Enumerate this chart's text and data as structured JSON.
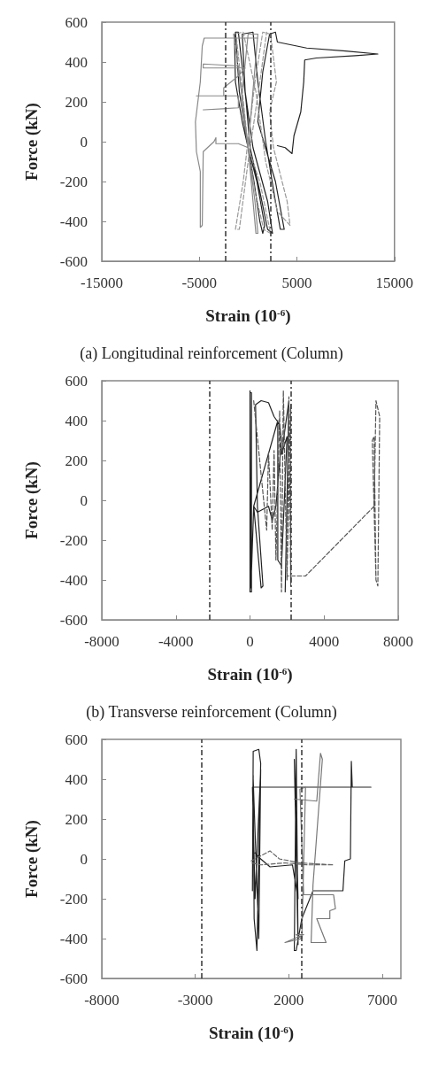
{
  "chart_data": [
    {
      "type": "line",
      "title": "(a) Longitudinal reinforcement (Column)",
      "xlabel": "Strain (10$^{-6}$)",
      "ylabel": "Force (kN)",
      "xlim": [
        -15000,
        15000
      ],
      "xticks": [
        -15000,
        -5000,
        5000,
        15000
      ],
      "ylim": [
        -600,
        600
      ],
      "yticks": [
        -600,
        -400,
        -200,
        0,
        200,
        400,
        600
      ],
      "marker": "none",
      "grid": false,
      "ref_lines": [
        {
          "axis": "x",
          "value": -2300,
          "color": "#333333",
          "line_style": "dashed"
        },
        {
          "axis": "x",
          "value": 2300,
          "color": "#333333",
          "line_style": "dashed"
        }
      ],
      "series": [
        {
          "color": "#222222",
          "line_style": "solid",
          "x": [
            -1400,
            -1300,
            -600,
            0,
            600,
            1200,
            1500,
            1700,
            900,
            0,
            -900,
            -1300,
            -1000,
            -200,
            200,
            1200,
            2000,
            2500,
            2000,
            500,
            -300,
            -600,
            500,
            1000,
            1800,
            2800,
            3300,
            3700,
            2800,
            1000,
            1500,
            2200,
            2800,
            3000,
            6000,
            10000,
            13300,
            11000,
            7000,
            5800,
            5700,
            5400,
            4700,
            4500,
            3800,
            3000
          ],
          "values": [
            540,
            300,
            100,
            -30,
            -200,
            -400,
            -460,
            -420,
            -200,
            -30,
            250,
            550,
            550,
            200,
            -30,
            -250,
            -440,
            -460,
            -300,
            -30,
            250,
            540,
            550,
            300,
            0,
            -300,
            -440,
            -440,
            -200,
            100,
            350,
            540,
            550,
            500,
            470,
            455,
            440,
            432,
            420,
            410,
            300,
            150,
            30,
            -60,
            -30,
            -20
          ]
        },
        {
          "color": "#999999",
          "line_style": "dashed",
          "x": [
            -1200,
            -700,
            0,
            700,
            1600,
            2300,
            1200,
            0,
            -800,
            -1500,
            -500,
            800,
            1800,
            3000,
            4300,
            4000,
            2600,
            2200,
            2900,
            2300,
            1500,
            700,
            -500,
            -1300,
            -900,
            0,
            1200,
            1900
          ],
          "values": [
            520,
            300,
            -30,
            -250,
            -440,
            -460,
            -200,
            -30,
            300,
            540,
            550,
            250,
            -100,
            -350,
            -420,
            -300,
            -30,
            150,
            300,
            540,
            550,
            300,
            -200,
            -440,
            -440,
            -100,
            300,
            550
          ]
        },
        {
          "color": "#888888",
          "line_style": "solid",
          "x": [
            1000,
            -4500,
            -4700,
            -4900,
            -5400,
            -5300,
            -4900,
            -4900,
            -4700,
            -4600,
            -3500,
            -3300,
            -3300,
            -1000,
            0,
            400,
            1000,
            0,
            -700,
            0,
            700,
            1000,
            800,
            0,
            -1000,
            -4600,
            -4600,
            -300,
            -1000,
            -2500,
            -2500,
            -5300,
            -1000,
            -1000,
            -4500,
            -4600
          ],
          "values": [
            520,
            520,
            480,
            300,
            100,
            -50,
            -150,
            -430,
            -420,
            -50,
            0,
            20,
            -10,
            -10,
            -30,
            200,
            540,
            540,
            200,
            -30,
            -300,
            -460,
            -460,
            -30,
            380,
            390,
            370,
            370,
            330,
            270,
            230,
            230,
            230,
            170,
            160,
            160
          ]
        }
      ]
    },
    {
      "type": "line",
      "title": "(b) Transverse reinforcement (Column)",
      "xlabel": "Strain (10$^{-6}$)",
      "ylabel": "Force (kN)",
      "xlim": [
        -8000,
        8000
      ],
      "xticks": [
        -8000,
        -4000,
        0,
        4000,
        8000
      ],
      "ylim": [
        -600,
        600
      ],
      "yticks": [
        -600,
        -400,
        -200,
        0,
        200,
        400,
        600
      ],
      "marker": "none",
      "grid": false,
      "ref_lines": [
        {
          "axis": "x",
          "value": -2200,
          "color": "#333333",
          "line_style": "dashed"
        },
        {
          "axis": "x",
          "value": 2200,
          "color": "#333333",
          "line_style": "dashed"
        }
      ],
      "series": [
        {
          "color": "#222222",
          "line_style": "solid",
          "x": [
            0,
            0,
            80,
            80,
            0,
            50,
            200,
            600,
            700,
            400,
            300,
            600,
            1000,
            1300,
            1600,
            1700,
            1400,
            1200,
            1000,
            400,
            200,
            1200,
            1500,
            1500,
            1700,
            2000,
            1700,
            2100,
            1900
          ],
          "values": [
            550,
            -460,
            -460,
            540,
            540,
            -440,
            -30,
            -440,
            -430,
            -30,
            480,
            500,
            490,
            420,
            380,
            300,
            -30,
            -100,
            -30,
            -60,
            -30,
            300,
            400,
            -300,
            -330,
            320,
            230,
            500,
            -460
          ]
        },
        {
          "color": "#555555",
          "line_style": "dashed",
          "x": [
            200,
            900,
            1000,
            1200,
            1300,
            1400,
            1600,
            1700,
            1800,
            2000,
            2100,
            2200,
            2200,
            2000,
            3000,
            6700,
            6800,
            7000,
            6900,
            6800,
            6700,
            6600,
            6800
          ],
          "values": [
            500,
            -150,
            240,
            -150,
            250,
            -300,
            450,
            -460,
            550,
            -400,
            520,
            -430,
            480,
            -380,
            -380,
            -30,
            500,
            420,
            -430,
            -400,
            320,
            300,
            -400
          ]
        }
      ]
    },
    {
      "type": "line",
      "xlabel": "Strain (10$^{-6}$)",
      "ylabel": "Force (kN)",
      "xlim": [
        -8000,
        8000
      ],
      "xticks": [
        -8000,
        -3000,
        2000,
        7000
      ],
      "ylim": [
        -600,
        600
      ],
      "yticks": [
        -600,
        -400,
        -200,
        0,
        200,
        400,
        600
      ],
      "marker": "none",
      "grid": false,
      "ref_lines": [
        {
          "axis": "x",
          "value": -2650,
          "color": "#333333",
          "line_style": "dashed"
        },
        {
          "axis": "x",
          "value": 2700,
          "color": "#333333",
          "line_style": "dashed"
        }
      ],
      "series": [
        {
          "color": "#222222",
          "line_style": "solid",
          "x": [
            100,
            60,
            100,
            400,
            500,
            300,
            150,
            100,
            400,
            500,
            200,
            60,
            6400,
            5400,
            5350,
            5300,
            5000,
            4900,
            3300,
            2700,
            2400,
            2300,
            2400,
            2500,
            2300,
            2500,
            2200,
            1000,
            500,
            200
          ],
          "values": [
            420,
            -160,
            540,
            550,
            480,
            -460,
            -300,
            400,
            -400,
            450,
            -200,
            360,
            360,
            360,
            490,
            0,
            -10,
            -160,
            -160,
            -300,
            -460,
            -460,
            550,
            -430,
            500,
            -200,
            -30,
            -40,
            0,
            30
          ]
        },
        {
          "color": "#777777",
          "line_style": "solid",
          "x": [
            2300,
            3500,
            3700,
            3800,
            3300,
            3200,
            4000,
            3500,
            4200,
            4200,
            4500,
            4400,
            2800,
            2600,
            2900,
            2700,
            2400,
            2800,
            1800,
            2700
          ],
          "values": [
            300,
            290,
            530,
            500,
            -130,
            -420,
            -420,
            -300,
            -300,
            -260,
            -250,
            -180,
            -180,
            350,
            360,
            -400,
            -380,
            -380,
            -420,
            -400
          ]
        },
        {
          "color": "#666666",
          "line_style": "dashed",
          "x": [
            0,
            1000,
            1500,
            2600,
            4400,
            3000,
            1800,
            500,
            0
          ],
          "values": [
            -10,
            40,
            0,
            -20,
            -30,
            -30,
            -20,
            -30,
            -20
          ]
        }
      ]
    }
  ]
}
